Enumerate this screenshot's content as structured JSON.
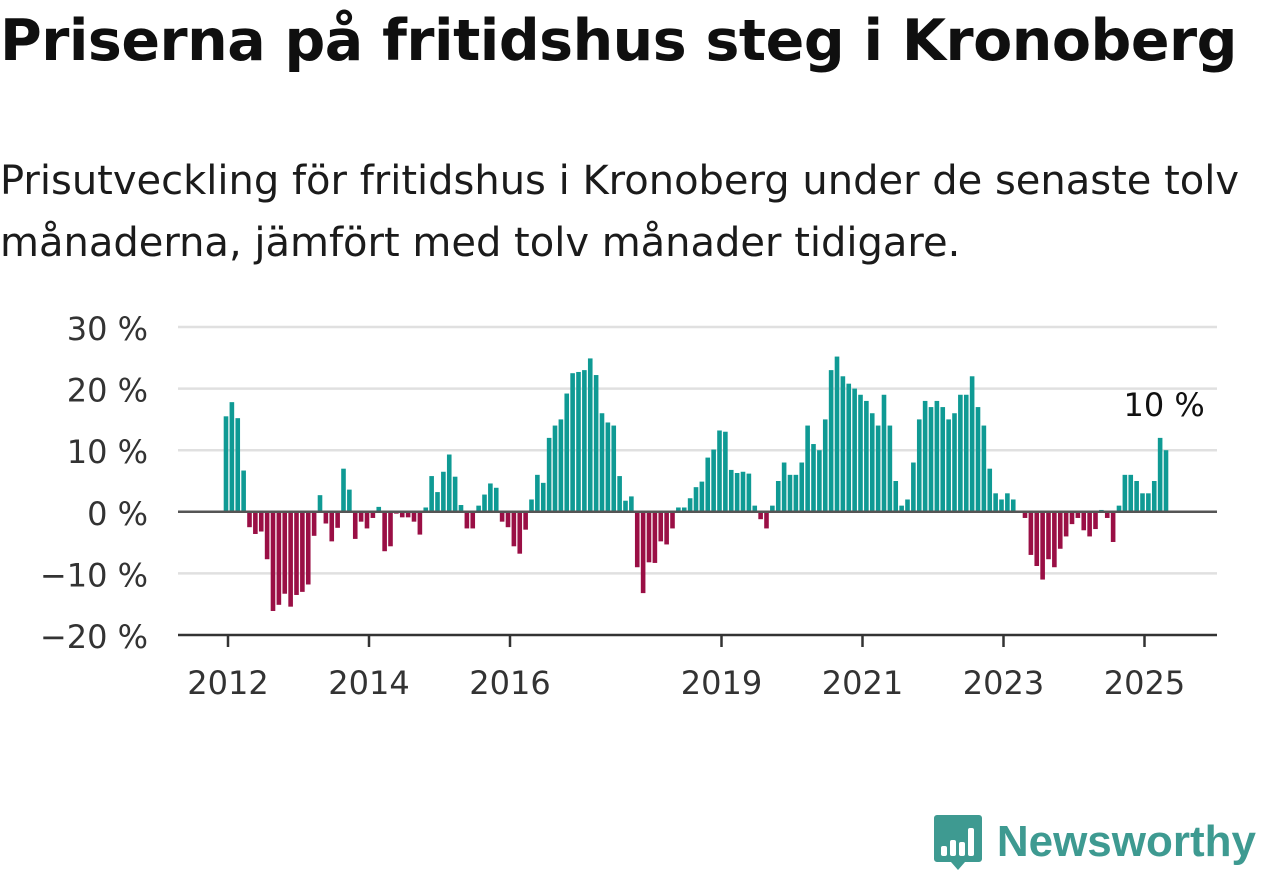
{
  "title": "Priserna på fritidshus steg i Kronoberg",
  "subtitle": "Prisutveckling för fritidshus i Kronoberg under de senaste tolv månaderna, jämfört med tolv månader tidigare.",
  "brand": {
    "name": "Newsworthy",
    "icon": "bar-chart-speech-bubble-icon",
    "color": "#3e9a91"
  },
  "colors": {
    "positive": "#0f9a94",
    "negative": "#9a0f45",
    "grid": "#e0e0e0",
    "axis": "#444444"
  },
  "chart_data": {
    "type": "bar",
    "title": "Priserna på fritidshus steg i Kronoberg",
    "ylabel": "",
    "ylim": [
      -20,
      30
    ],
    "yticks": [
      {
        "value": 30,
        "label": "30 %"
      },
      {
        "value": 20,
        "label": "20 %"
      },
      {
        "value": 10,
        "label": "10 %"
      },
      {
        "value": 0,
        "label": "0 %"
      },
      {
        "value": -10,
        "label": "−10 %"
      },
      {
        "value": -20,
        "label": "−20 %"
      }
    ],
    "xticks": [
      {
        "x": 2012.0,
        "label": "2012"
      },
      {
        "x": 2014.0,
        "label": "2014"
      },
      {
        "x": 2016.0,
        "label": "2016"
      },
      {
        "x": 2019.0,
        "label": "2019"
      },
      {
        "x": 2021.0,
        "label": "2021"
      },
      {
        "x": 2023.0,
        "label": "2023"
      },
      {
        "x": 2025.0,
        "label": "2025"
      }
    ],
    "start": "2012-01",
    "frequency": "monthly",
    "annotation": {
      "label": "10 %",
      "index": 159
    },
    "grid": true,
    "values": [
      15.5,
      17.8,
      15.2,
      6.7,
      -2.5,
      -3.6,
      -3.2,
      -7.7,
      -16.1,
      -15.1,
      -13.3,
      -15.4,
      -13.5,
      -13.0,
      -11.8,
      -3.9,
      2.7,
      -1.9,
      -4.8,
      -2.6,
      7.0,
      3.6,
      -4.4,
      -1.6,
      -2.7,
      -1.0,
      0.8,
      -6.4,
      -5.6,
      -0.3,
      -0.9,
      -0.9,
      -1.6,
      -3.7,
      0.7,
      5.8,
      3.2,
      6.5,
      9.3,
      5.7,
      1.1,
      -2.7,
      -2.7,
      1.0,
      2.8,
      4.6,
      3.9,
      -1.6,
      -2.5,
      -5.6,
      -6.8,
      -2.9,
      2.0,
      6.0,
      4.7,
      12.0,
      14.0,
      15.0,
      19.2,
      22.5,
      22.7,
      23.0,
      24.9,
      22.2,
      16.0,
      14.5,
      14.0,
      5.8,
      1.8,
      2.5,
      -9.0,
      -13.2,
      -8.2,
      -8.3,
      -4.8,
      -5.3,
      -2.7,
      0.7,
      0.7,
      2.2,
      4.0,
      4.9,
      8.8,
      10.1,
      13.2,
      13.0,
      6.8,
      6.3,
      6.5,
      6.2,
      1.0,
      -1.2,
      -2.7,
      1.0,
      5.0,
      8.0,
      6.0,
      6.0,
      8.0,
      14.0,
      11.0,
      10.0,
      15.0,
      23.0,
      25.2,
      22.0,
      20.8,
      20.0,
      19.0,
      18.0,
      16.0,
      14.0,
      19.0,
      14.0,
      5.0,
      1.0,
      2.0,
      8.0,
      15.0,
      18.0,
      17.0,
      18.0,
      17.0,
      15.0,
      16.0,
      19.0,
      19.0,
      22.0,
      17.0,
      14.0,
      7.0,
      3.0,
      2.0,
      3.0,
      2.0,
      0.0,
      -1.0,
      -7.0,
      -8.8,
      -11.0,
      -7.7,
      -9.0,
      -6.0,
      -4.0,
      -2.0,
      -1.0,
      -3.0,
      -4.0,
      -2.8,
      0.3,
      -1.0,
      -4.9,
      1.0,
      6.0,
      6.0,
      5.0,
      3.0,
      3.0,
      5.0,
      12.0,
      10.0
    ]
  }
}
